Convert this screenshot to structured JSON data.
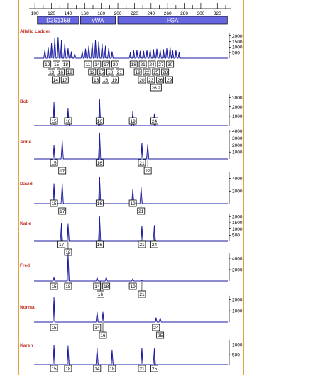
{
  "chart_data": {
    "type": "line",
    "x_axis": {
      "range": [
        93,
        336
      ],
      "major_ticks": [
        100,
        120,
        140,
        160,
        180,
        200,
        220,
        240,
        260,
        280,
        300,
        320
      ],
      "minor_step": 10
    },
    "loci": [
      {
        "name": "D3S1358",
        "range": [
          103,
          153
        ]
      },
      {
        "name": "vWA",
        "range": [
          155,
          197
        ]
      },
      {
        "name": "FGA",
        "range": [
          200,
          332
        ]
      }
    ],
    "colors": {
      "trace": "#1a1aa0",
      "name": "#c0392b",
      "locus_bar": "#6666e0",
      "frame": "#e3a23a"
    },
    "samples": [
      {
        "name": "Allelic Ladder",
        "y_max": 2300,
        "y_ticks": [
          {
            "v": 2000,
            "label": "2000"
          },
          {
            "v": 1500,
            "label": "1500"
          },
          {
            "v": 1000,
            "label": "1000"
          },
          {
            "v": 500,
            "label": "500"
          }
        ],
        "peaks": [
          [
            112,
            700
          ],
          [
            116,
            1000
          ],
          [
            120,
            1350
          ],
          [
            124,
            1800
          ],
          [
            128,
            1900
          ],
          [
            132,
            1600
          ],
          [
            136,
            1300
          ],
          [
            140,
            900
          ],
          [
            144,
            600
          ],
          [
            148,
            400
          ],
          [
            157,
            600
          ],
          [
            161,
            850
          ],
          [
            165,
            1100
          ],
          [
            169,
            1400
          ],
          [
            173,
            1650
          ],
          [
            177,
            1500
          ],
          [
            181,
            1300
          ],
          [
            185,
            1100
          ],
          [
            189,
            900
          ],
          [
            193,
            600
          ],
          [
            215,
            500
          ],
          [
            219,
            700
          ],
          [
            223,
            750
          ],
          [
            227,
            650
          ],
          [
            231,
            650
          ],
          [
            235,
            700
          ],
          [
            239,
            750
          ],
          [
            243,
            800
          ],
          [
            247,
            850
          ],
          [
            251,
            700
          ],
          [
            255,
            800
          ],
          [
            259,
            900
          ],
          [
            263,
            1000
          ],
          [
            266,
            750
          ],
          [
            270,
            700
          ],
          [
            274,
            550
          ]
        ],
        "allele_rows": [
          [
            {
              "x": 115,
              "label": "12"
            },
            {
              "x": 126,
              "label": "15"
            },
            {
              "x": 137,
              "label": "18"
            },
            {
              "x": 164,
              "label": "11"
            },
            {
              "x": 175,
              "label": "14"
            },
            {
              "x": 186,
              "label": "17"
            },
            {
              "x": 197,
              "label": "20"
            },
            {
              "x": 219,
              "label": "18"
            },
            {
              "x": 230,
              "label": "21"
            },
            {
              "x": 241,
              "label": "24"
            },
            {
              "x": 252,
              "label": "27"
            },
            {
              "x": 263,
              "label": "30"
            }
          ],
          [
            {
              "x": 120,
              "label": "13"
            },
            {
              "x": 131,
              "label": "16"
            },
            {
              "x": 142,
              "label": "19"
            },
            {
              "x": 169,
              "label": "12"
            },
            {
              "x": 180,
              "label": "15"
            },
            {
              "x": 191,
              "label": "18"
            },
            {
              "x": 202,
              "label": "21"
            },
            {
              "x": 224,
              "label": "19"
            },
            {
              "x": 235,
              "label": "22"
            },
            {
              "x": 246,
              "label": "25"
            },
            {
              "x": 257,
              "label": "28"
            }
          ],
          [
            {
              "x": 125,
              "label": "14"
            },
            {
              "x": 136,
              "label": "17"
            },
            {
              "x": 174,
              "label": "13"
            },
            {
              "x": 185,
              "label": "16"
            },
            {
              "x": 196,
              "label": "19"
            },
            {
              "x": 229,
              "label": "20"
            },
            {
              "x": 240,
              "label": "23"
            },
            {
              "x": 251,
              "label": "26"
            },
            {
              "x": 262,
              "label": "29"
            }
          ],
          [
            {
              "x": 246,
              "label": "26.2"
            }
          ]
        ]
      },
      {
        "name": "Bob",
        "y_max": 3500,
        "y_ticks": [
          {
            "v": 3000,
            "label": "3000"
          },
          {
            "v": 2000,
            "label": "2000"
          },
          {
            "v": 1000,
            "label": "1000"
          }
        ],
        "peaks": [
          [
            123,
            2500
          ],
          [
            140,
            1900
          ],
          [
            178,
            2800
          ],
          [
            218,
            1600
          ],
          [
            244,
            1300
          ]
        ],
        "allele_rows": [
          [
            {
              "x": 123,
              "label": "15"
            },
            {
              "x": 140,
              "label": "18"
            },
            {
              "x": 178,
              "label": "16"
            },
            {
              "x": 218,
              "label": "19"
            },
            {
              "x": 244,
              "label": "24"
            }
          ]
        ]
      },
      {
        "name": "Anne",
        "y_max": 4300,
        "y_ticks": [
          {
            "v": 4000,
            "label": "4000"
          },
          {
            "v": 3000,
            "label": "3000"
          },
          {
            "v": 2000,
            "label": "2000"
          },
          {
            "v": 1000,
            "label": "1000"
          }
        ],
        "peaks": [
          [
            123,
            2000
          ],
          [
            133,
            2600
          ],
          [
            178,
            3800
          ],
          [
            229,
            2300
          ],
          [
            236,
            2100
          ]
        ],
        "allele_rows": [
          [
            {
              "x": 123,
              "label": "15"
            },
            {
              "x": 178,
              "label": "16"
            },
            {
              "x": 229,
              "label": "21"
            }
          ],
          [
            {
              "x": 133,
              "label": "17"
            },
            {
              "x": 236,
              "label": "22"
            }
          ]
        ]
      },
      {
        "name": "David",
        "y_max": 5200,
        "y_ticks": [
          {
            "v": 4000,
            "label": "4000"
          },
          {
            "v": 2000,
            "label": "2000"
          }
        ],
        "peaks": [
          [
            123,
            3200
          ],
          [
            133,
            3200
          ],
          [
            178,
            4300
          ],
          [
            218,
            2300
          ],
          [
            228,
            2600
          ]
        ],
        "allele_rows": [
          [
            {
              "x": 123,
              "label": "15"
            },
            {
              "x": 178,
              "label": "16"
            },
            {
              "x": 218,
              "label": "19"
            }
          ],
          [
            {
              "x": 133,
              "label": "17"
            },
            {
              "x": 228,
              "label": "21"
            }
          ]
        ]
      },
      {
        "name": "Katie",
        "y_max": 2300,
        "y_ticks": [
          {
            "v": 2000,
            "label": "2000"
          },
          {
            "v": 1500,
            "label": "1500"
          },
          {
            "v": 1000,
            "label": "1000"
          },
          {
            "v": 500,
            "label": "500"
          }
        ],
        "peaks": [
          [
            132,
            1450
          ],
          [
            140,
            1400
          ],
          [
            178,
            2000
          ],
          [
            229,
            1250
          ],
          [
            244,
            1300
          ]
        ],
        "allele_rows": [
          [
            {
              "x": 132,
              "label": "17"
            },
            {
              "x": 178,
              "label": "16"
            },
            {
              "x": 229,
              "label": "21"
            },
            {
              "x": 244,
              "label": "24"
            }
          ],
          [
            {
              "x": 140,
              "label": "18"
            }
          ]
        ]
      },
      {
        "name": "Fred",
        "y_max": 5000,
        "y_ticks": [
          {
            "v": 4000,
            "label": "4000"
          },
          {
            "v": 2000,
            "label": "2000"
          }
        ],
        "peaks": [
          [
            123,
            600
          ],
          [
            140,
            4800
          ],
          [
            175,
            600
          ],
          [
            186,
            650
          ],
          [
            218,
            400
          ],
          [
            229,
            150
          ]
        ],
        "allele_rows": [
          [
            {
              "x": 123,
              "label": "15"
            },
            {
              "x": 140,
              "label": "18"
            },
            {
              "x": 175,
              "label": "14"
            },
            {
              "x": 186,
              "label": "18"
            },
            {
              "x": 218,
              "label": "19"
            }
          ],
          [
            {
              "x": 179,
              "label": "16"
            },
            {
              "x": 229,
              "label": "21"
            }
          ]
        ]
      },
      {
        "name": "Norma",
        "y_max": 2400,
        "y_ticks": [
          {
            "v": 2000,
            "label": "2000"
          },
          {
            "v": 1000,
            "label": "1000"
          }
        ],
        "peaks": [
          [
            123,
            2200
          ],
          [
            175,
            900
          ],
          [
            182,
            900
          ],
          [
            246,
            400
          ],
          [
            251,
            380
          ]
        ],
        "allele_rows": [
          [
            {
              "x": 123,
              "label": "15"
            },
            {
              "x": 175,
              "label": "14"
            },
            {
              "x": 246,
              "label": "24"
            }
          ],
          [
            {
              "x": 182,
              "label": "16"
            },
            {
              "x": 251,
              "label": "25"
            }
          ]
        ]
      },
      {
        "name": "Karen",
        "y_max": 1300,
        "y_ticks": [
          {
            "v": 1000,
            "label": "1000"
          },
          {
            "v": 500,
            "label": "500"
          }
        ],
        "peaks": [
          [
            123,
            1000
          ],
          [
            140,
            950
          ],
          [
            175,
            850
          ],
          [
            193,
            760
          ],
          [
            229,
            850
          ],
          [
            244,
            820
          ]
        ],
        "allele_rows": [
          [
            {
              "x": 123,
              "label": "15"
            },
            {
              "x": 140,
              "label": "18"
            },
            {
              "x": 175,
              "label": "14"
            },
            {
              "x": 193,
              "label": "18"
            },
            {
              "x": 229,
              "label": "21"
            },
            {
              "x": 244,
              "label": "25"
            }
          ]
        ]
      }
    ]
  }
}
